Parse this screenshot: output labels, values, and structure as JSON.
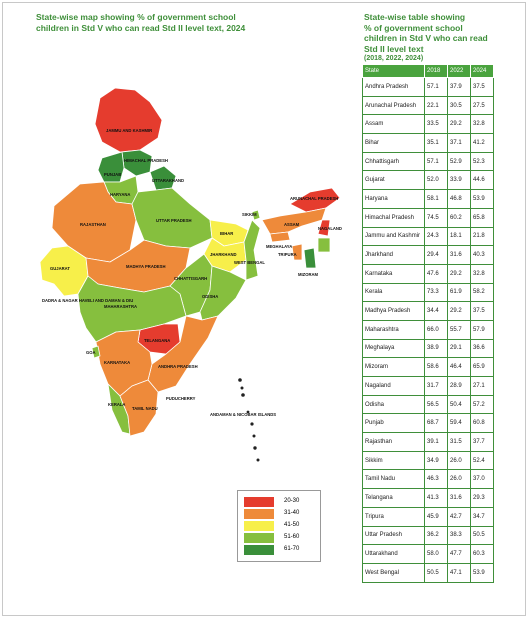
{
  "map_title": [
    "State-wise map showing % of government school",
    "children in Std V who can read Std II level text, 2024"
  ],
  "table_title": [
    "State-wise table showing",
    "% of government school",
    "children in Std V who can read",
    "Std II level text"
  ],
  "table_subtitle": "(2018, 2022, 2024)",
  "table_headers": [
    "State",
    "2018",
    "2022",
    "2024"
  ],
  "rows": [
    [
      "Andhra Pradesh",
      "57.1",
      "37.9",
      "37.5"
    ],
    [
      "Arunachal Pradesh",
      "22.1",
      "30.5",
      "27.5"
    ],
    [
      "Assam",
      "33.5",
      "29.2",
      "32.8"
    ],
    [
      "Bihar",
      "35.1",
      "37.1",
      "41.2"
    ],
    [
      "Chhattisgarh",
      "57.1",
      "52.9",
      "52.3"
    ],
    [
      "Gujarat",
      "52.0",
      "33.9",
      "44.6"
    ],
    [
      "Haryana",
      "58.1",
      "46.8",
      "53.9"
    ],
    [
      "Himachal Pradesh",
      "74.5",
      "60.2",
      "65.8"
    ],
    [
      "Jammu and Kashmir",
      "24.3",
      "18.1",
      "21.8"
    ],
    [
      "Jharkhand",
      "29.4",
      "31.6",
      "40.3"
    ],
    [
      "Karnataka",
      "47.6",
      "29.2",
      "32.8"
    ],
    [
      "Kerala",
      "73.3",
      "61.9",
      "58.2"
    ],
    [
      "Madhya Pradesh",
      "34.4",
      "29.2",
      "37.5"
    ],
    [
      "Maharashtra",
      "66.0",
      "55.7",
      "57.9"
    ],
    [
      "Meghalaya",
      "38.9",
      "29.1",
      "36.6"
    ],
    [
      "Mizoram",
      "58.6",
      "46.4",
      "65.9"
    ],
    [
      "Nagaland",
      "31.7",
      "28.9",
      "27.1"
    ],
    [
      "Odisha",
      "56.5",
      "50.4",
      "57.2"
    ],
    [
      "Punjab",
      "68.7",
      "59.4",
      "60.8"
    ],
    [
      "Rajasthan",
      "39.1",
      "31.5",
      "37.7"
    ],
    [
      "Sikkim",
      "34.9",
      "26.0",
      "52.4"
    ],
    [
      "Tamil Nadu",
      "46.3",
      "26.0",
      "37.0"
    ],
    [
      "Telangana",
      "41.3",
      "31.6",
      "29.3"
    ],
    [
      "Tripura",
      "45.9",
      "42.7",
      "34.7"
    ],
    [
      "Uttar Pradesh",
      "36.2",
      "38.3",
      "50.5"
    ],
    [
      "Uttarakhand",
      "58.0",
      "47.7",
      "60.3"
    ],
    [
      "West Bengal",
      "50.5",
      "47.1",
      "53.9"
    ]
  ],
  "legend": [
    {
      "label": "20-30",
      "color": "#e53c2e"
    },
    {
      "label": "31-40",
      "color": "#ee8a3a"
    },
    {
      "label": "41-50",
      "color": "#f7ef4a"
    },
    {
      "label": "51-60",
      "color": "#86bf3e"
    },
    {
      "label": "61-70",
      "color": "#3a8f3a"
    }
  ],
  "map_labels": {
    "jk": "JAMMU AND KASHMIR",
    "hp": "HIMACHAL PRADESH",
    "pb": "PUNJAB",
    "uk": "UTTARAKHAND",
    "hr": "HARYANA",
    "rj": "RAJASTHAN",
    "up": "UTTAR PRADESH",
    "gj": "GUJARAT",
    "mp": "MADHYA PRADESH",
    "br": "BIHAR",
    "jh": "JHARKHAND",
    "wb": "WEST BENGAL",
    "ch": "CHHATTISGARH",
    "od": "ODISHA",
    "mh": "MAHARASHTRA",
    "tg": "TELANGANA",
    "ap": "ANDHRA PRADESH",
    "ka": "KARNATAKA",
    "tn": "TAMIL NADU",
    "kl": "KERALA",
    "as": "ASSAM",
    "ar": "ARUNACHAL PRADESH",
    "ml": "MEGHALAYA",
    "nl": "NAGALAND",
    "mz": "MIZORAM",
    "tr": "TRIPURA",
    "sk": "SIKKIM",
    "dd": "DADRA & NAGAR HAVELI AND DAMAN & DIU",
    "goa": "GOA",
    "py": "PUDUCHERRY",
    "an": "ANDAMAN & NICOBAR ISLANDS"
  }
}
